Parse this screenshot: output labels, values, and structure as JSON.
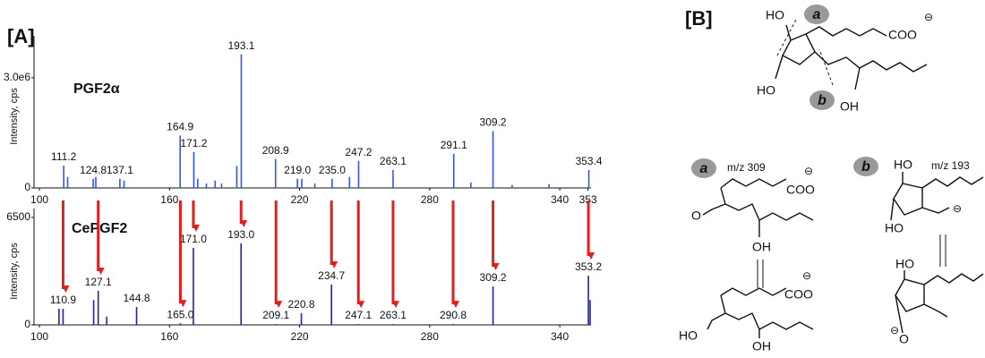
{
  "panel_labels": [
    "[A]",
    "[B]"
  ],
  "chart_data": [
    {
      "type": "bar",
      "ylabel": "Intensity, cps",
      "xlim": [
        97.5,
        354.4
      ],
      "xticks": [
        100,
        160,
        220,
        280,
        340,
        353
      ],
      "ylim": [
        0,
        3900000
      ],
      "yticks": [
        0,
        {
          "value": 3000000,
          "label": "3.0e6"
        }
      ],
      "series": [
        {
          "name": "PGF2α",
          "color": "#3355ee",
          "x": [
            111.2,
            113,
            124.8,
            126,
            137.1,
            139,
            164.9,
            171.2,
            173,
            177,
            181,
            184,
            191,
            193.1,
            208.9,
            219.0,
            221,
            227,
            235.0,
            243,
            247.2,
            263.1,
            291.1,
            299,
            309.2,
            318,
            335,
            353.4
          ],
          "values": [
            610000,
            300000,
            250000,
            300000,
            250000,
            200000,
            1430000,
            980000,
            250000,
            120000,
            200000,
            120000,
            600000,
            3640000,
            790000,
            250000,
            250000,
            120000,
            250000,
            300000,
            740000,
            490000,
            930000,
            150000,
            1550000,
            80000,
            100000,
            490000
          ],
          "point_labels": [
            "111.2",
            null,
            "124.8",
            null,
            "137.1",
            null,
            "164.9",
            "171.2",
            null,
            null,
            null,
            null,
            null,
            "193.1",
            "208.9",
            "219.0",
            null,
            null,
            "235.0",
            null,
            "247.2",
            "263.1",
            "291.1",
            null,
            "309.2",
            null,
            null,
            "353.4"
          ]
        }
      ]
    },
    {
      "type": "bar",
      "ylabel": "Intensity, cps",
      "xlim": [
        97.5,
        354.4
      ],
      "xticks": [
        100,
        160,
        220,
        280,
        340
      ],
      "ylim": [
        0,
        6500
      ],
      "yticks": [
        0,
        6500
      ],
      "series": [
        {
          "name": "CePGF2",
          "color": "#2222aa",
          "x": [
            109,
            110.9,
            125,
            127.1,
            131,
            144.8,
            165.0,
            171.0,
            193.0,
            209.1,
            220.8,
            234.7,
            247.1,
            263.1,
            290.8,
            309.2,
            353.2,
            354
          ],
          "values": [
            975,
            975,
            1500,
            2060,
            500,
            1080,
            100,
            4660,
            4930,
            50,
            700,
            2440,
            50,
            50,
            50,
            2330,
            2980,
            1500
          ],
          "point_labels": [
            null,
            "110.9",
            null,
            "127.1",
            null,
            "144.8",
            "165.0",
            "171.0",
            "193.0",
            "209.1",
            "220.8",
            "234.7",
            "247.1",
            "263.1",
            "290.8",
            "309.2",
            "353.2",
            null
          ]
        }
      ]
    }
  ],
  "scheme": {
    "texts": [
      "HO",
      "a",
      "COO",
      "⊖",
      "HO",
      "b",
      "OH",
      "a",
      "m/z 309",
      "COO",
      "⊖",
      "O",
      "OH",
      "HO",
      "COO",
      "⊖",
      "OH",
      "b",
      "HO",
      "m/z 193",
      "⊖",
      "HO",
      "HO",
      "O",
      "⊖"
    ]
  }
}
